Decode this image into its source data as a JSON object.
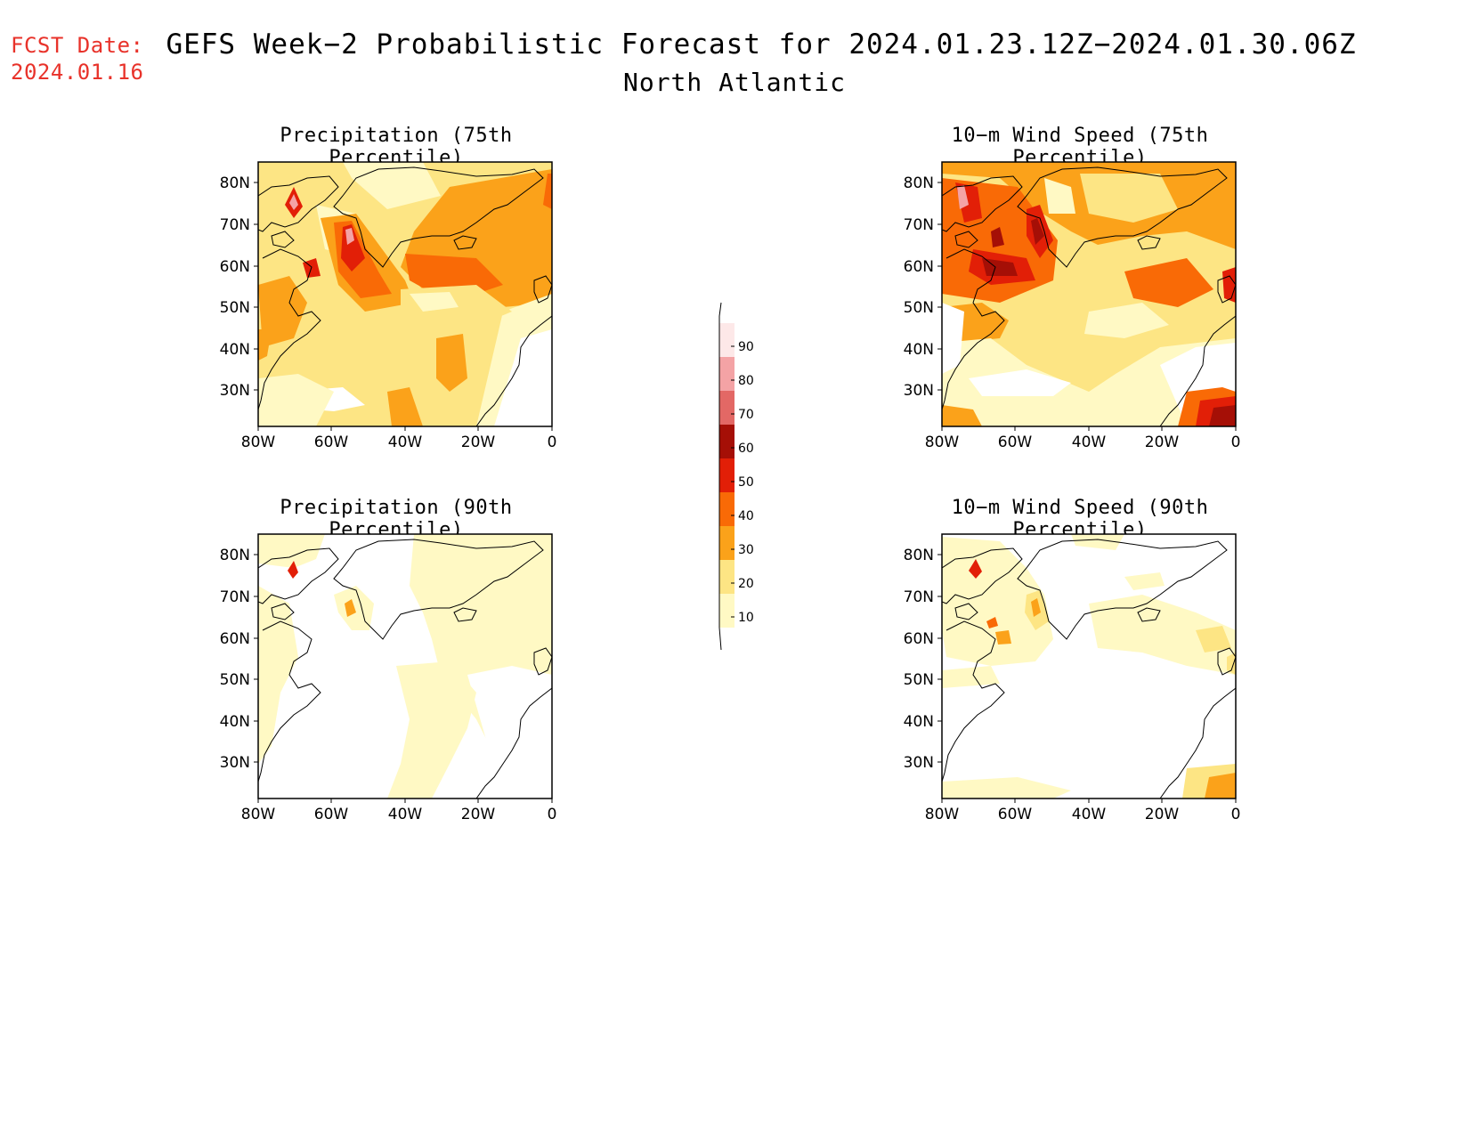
{
  "header": {
    "fcst_label": "FCST Date:",
    "fcst_date": "2024.01.16",
    "title": "GEFS Week−2 Probabilistic Forecast for 2024.01.23.12Z−2024.01.30.06Z",
    "subtitle": "North Atlantic"
  },
  "axes": {
    "lat_ticks": [
      "80N",
      "70N",
      "60N",
      "50N",
      "40N",
      "30N"
    ],
    "lon_ticks": [
      "80W",
      "60W",
      "40W",
      "20W",
      "0"
    ]
  },
  "panels": [
    {
      "id": "precip-75",
      "title": "Precipitation (75th Percentile)"
    },
    {
      "id": "wind-75",
      "title": "10−m Wind Speed (75th Percentile)"
    },
    {
      "id": "precip-90",
      "title": "Precipitation (90th Percentile)"
    },
    {
      "id": "wind-90",
      "title": "10−m Wind Speed (90th Percentile)"
    }
  ],
  "colorbar": {
    "levels": [
      "10",
      "20",
      "30",
      "40",
      "50",
      "60",
      "70",
      "80",
      "90"
    ],
    "colors": [
      "#fff9c4",
      "#fde584",
      "#fba21a",
      "#f96a06",
      "#e21f07",
      "#a50f06",
      "#e36865",
      "#f4a3a5",
      "#fde8e8"
    ]
  },
  "colors": {
    "fcst": "#e8322a",
    "fill_10": "#fff9c4",
    "fill_20": "#fde584",
    "fill_30": "#fba21a",
    "fill_40": "#f96a06",
    "fill_50": "#e21f07",
    "fill_60": "#a50f06"
  }
}
